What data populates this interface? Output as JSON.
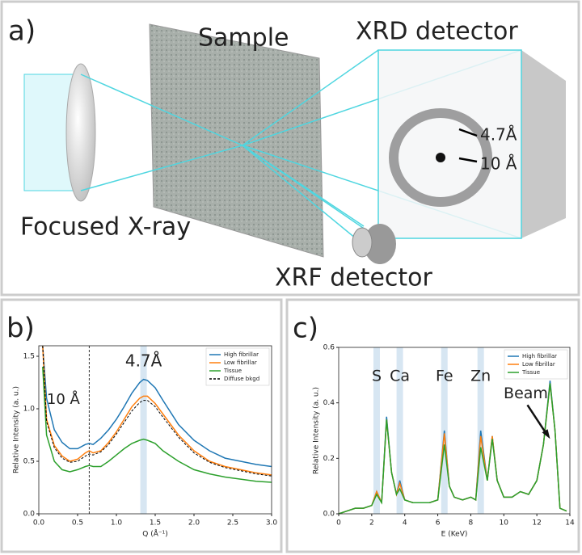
{
  "panel_labels": {
    "a": "a)",
    "b": "b)",
    "c": "c)"
  },
  "diagram": {
    "sample": "Sample",
    "xrd_detector": "XRD detector",
    "focused_xray": "Focused X-ray",
    "xrf_detector": "XRF detector",
    "ring_outer": "4.7Å",
    "ring_inner": "10 Å"
  },
  "chart_data": [
    {
      "type": "line",
      "ylabel": "Relative Intensity (a. u.)",
      "xlabel": "Q (Å⁻¹)",
      "x": [
        0.05,
        0.1,
        0.2,
        0.3,
        0.4,
        0.5,
        0.6,
        0.65,
        0.7,
        0.8,
        0.9,
        1.0,
        1.1,
        1.2,
        1.3,
        1.35,
        1.4,
        1.5,
        1.6,
        1.8,
        2.0,
        2.2,
        2.4,
        2.6,
        2.8,
        3.0
      ],
      "series": [
        {
          "name": "High fibrillar",
          "color": "#1f77b4",
          "values": [
            1.6,
            1.1,
            0.8,
            0.68,
            0.62,
            0.62,
            0.66,
            0.67,
            0.66,
            0.72,
            0.8,
            0.9,
            1.02,
            1.15,
            1.25,
            1.28,
            1.27,
            1.2,
            1.08,
            0.85,
            0.7,
            0.6,
            0.53,
            0.5,
            0.47,
            0.45
          ]
        },
        {
          "name": "Low fibrillar",
          "color": "#ff7f0e",
          "values": [
            1.6,
            0.9,
            0.65,
            0.55,
            0.5,
            0.52,
            0.58,
            0.6,
            0.58,
            0.6,
            0.68,
            0.78,
            0.9,
            1.02,
            1.1,
            1.12,
            1.12,
            1.05,
            0.95,
            0.75,
            0.6,
            0.5,
            0.45,
            0.42,
            0.39,
            0.37
          ]
        },
        {
          "name": "Tissue",
          "color": "#2ca02c",
          "values": [
            1.4,
            0.75,
            0.5,
            0.42,
            0.4,
            0.42,
            0.45,
            0.46,
            0.45,
            0.45,
            0.5,
            0.56,
            0.62,
            0.67,
            0.7,
            0.71,
            0.7,
            0.67,
            0.6,
            0.5,
            0.42,
            0.38,
            0.35,
            0.33,
            0.31,
            0.3
          ]
        },
        {
          "name": "Diffuse bkgd",
          "color": "#000000",
          "dashed": true,
          "values": [
            1.6,
            0.88,
            0.63,
            0.53,
            0.49,
            0.5,
            0.55,
            0.57,
            0.56,
            0.59,
            0.66,
            0.76,
            0.87,
            0.98,
            1.06,
            1.08,
            1.08,
            1.02,
            0.92,
            0.73,
            0.58,
            0.49,
            0.44,
            0.41,
            0.38,
            0.36
          ]
        }
      ],
      "xlim": [
        0,
        3.0
      ],
      "ylim": [
        0,
        1.6
      ],
      "xticks": [
        {
          "value": 0,
          "label": "0.0"
        },
        0.5,
        {
          "value": 1,
          "label": "1.0"
        },
        1.5,
        {
          "value": 2,
          "label": "2.0"
        },
        2.5,
        {
          "value": 3,
          "label": "3.0"
        }
      ],
      "yticks": [
        {
          "value": 0,
          "label": "0.0"
        },
        0.5,
        {
          "value": 1,
          "label": "1.0"
        },
        1.5
      ],
      "highlights": [
        {
          "x": 1.35,
          "label": "4.7Å"
        }
      ],
      "vline": {
        "x": 0.65,
        "label": "10 Å"
      },
      "legend": "upper right"
    },
    {
      "type": "line",
      "ylabel": "Relative Intensity (a. u.)",
      "xlabel": "E (KeV)",
      "x": [
        0,
        0.5,
        1,
        1.5,
        2,
        2.3,
        2.6,
        2.9,
        3.2,
        3.5,
        3.7,
        4,
        4.5,
        5,
        5.5,
        6,
        6.4,
        6.7,
        7,
        7.5,
        8,
        8.3,
        8.6,
        9,
        9.3,
        9.6,
        10,
        10.5,
        11,
        11.5,
        12,
        12.4,
        12.8,
        13.1,
        13.4,
        13.8
      ],
      "series": [
        {
          "name": "High fibrillar",
          "color": "#1f77b4",
          "values": [
            0.0,
            0.01,
            0.02,
            0.02,
            0.03,
            0.08,
            0.04,
            0.35,
            0.15,
            0.07,
            0.12,
            0.05,
            0.04,
            0.04,
            0.04,
            0.05,
            0.3,
            0.1,
            0.06,
            0.05,
            0.06,
            0.05,
            0.3,
            0.12,
            0.28,
            0.12,
            0.06,
            0.06,
            0.08,
            0.07,
            0.12,
            0.25,
            0.48,
            0.3,
            0.02,
            0.01
          ]
        },
        {
          "name": "Low fibrillar",
          "color": "#ff7f0e",
          "values": [
            0.0,
            0.01,
            0.02,
            0.02,
            0.03,
            0.08,
            0.04,
            0.34,
            0.15,
            0.07,
            0.11,
            0.05,
            0.04,
            0.04,
            0.04,
            0.05,
            0.29,
            0.1,
            0.06,
            0.05,
            0.06,
            0.05,
            0.28,
            0.12,
            0.28,
            0.12,
            0.06,
            0.06,
            0.08,
            0.07,
            0.12,
            0.25,
            0.47,
            0.3,
            0.02,
            0.01
          ]
        },
        {
          "name": "Tissue",
          "color": "#2ca02c",
          "values": [
            0.0,
            0.01,
            0.02,
            0.02,
            0.03,
            0.07,
            0.04,
            0.34,
            0.15,
            0.07,
            0.09,
            0.05,
            0.04,
            0.04,
            0.04,
            0.05,
            0.25,
            0.1,
            0.06,
            0.05,
            0.06,
            0.05,
            0.24,
            0.12,
            0.27,
            0.12,
            0.06,
            0.06,
            0.08,
            0.07,
            0.12,
            0.25,
            0.47,
            0.3,
            0.02,
            0.01
          ]
        }
      ],
      "xlim": [
        0,
        14
      ],
      "ylim": [
        0,
        0.6
      ],
      "xticks": [
        0,
        2,
        4,
        6,
        8,
        10,
        12,
        14
      ],
      "yticks": [
        {
          "value": 0,
          "label": "0.0"
        },
        0.2,
        0.4,
        0.6
      ],
      "highlights": [
        {
          "x": 2.3,
          "label": "S"
        },
        {
          "x": 3.7,
          "label": "Ca"
        },
        {
          "x": 6.4,
          "label": "Fe"
        },
        {
          "x": 8.6,
          "label": "Zn"
        }
      ],
      "annotations": [
        {
          "text": "Beam",
          "x": 12.8,
          "y": 0.27
        }
      ],
      "legend": "upper right"
    }
  ]
}
